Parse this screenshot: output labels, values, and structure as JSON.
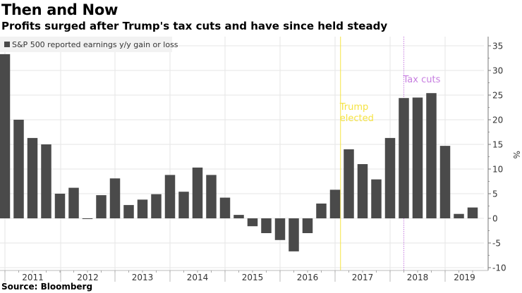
{
  "header": {
    "title": "Then and Now",
    "subtitle": "Profits surged after Trump's tax cuts and have since held steady"
  },
  "footer": {
    "source": "Source: Bloomberg"
  },
  "chart_data": {
    "type": "bar",
    "title": "Then and Now",
    "subtitle": "Profits surged after Trump's tax cuts and have since held steady",
    "xlabel": "",
    "ylabel": "%",
    "ylim": [
      -11,
      37
    ],
    "yticks": [
      -10,
      -5,
      0,
      5,
      10,
      15,
      20,
      25,
      30,
      35
    ],
    "y_axis_side": "right",
    "grid": true,
    "legend": {
      "placement": "top-left",
      "entries": [
        "S&P 500 reported earnings y/y gain or loss"
      ]
    },
    "year_labels": [
      "2011",
      "2012",
      "2013",
      "2014",
      "2015",
      "2016",
      "2017",
      "2018",
      "2019"
    ],
    "categories": [
      "4Q2010",
      "1Q2011",
      "2Q2011",
      "3Q2011",
      "4Q2011",
      "1Q2012",
      "2Q2012",
      "3Q2012",
      "4Q2012",
      "1Q2013",
      "2Q2013",
      "3Q2013",
      "4Q2013",
      "1Q2014",
      "2Q2014",
      "3Q2014",
      "4Q2014",
      "1Q2015",
      "2Q2015",
      "3Q2015",
      "4Q2015",
      "1Q2016",
      "2Q2016",
      "3Q2016",
      "4Q2016",
      "1Q2017",
      "2Q2017",
      "3Q2017",
      "4Q2017",
      "1Q2018",
      "2Q2018",
      "3Q2018",
      "4Q2018",
      "1Q2019",
      "2Q2019"
    ],
    "series": [
      {
        "name": "S&P 500 reported earnings y/y gain or loss",
        "color": "#4a4a4a",
        "values": [
          33.3,
          20.0,
          16.3,
          15.0,
          5.0,
          6.2,
          -0.1,
          4.7,
          8.1,
          2.7,
          3.8,
          4.9,
          8.8,
          5.4,
          10.3,
          8.8,
          4.2,
          0.7,
          -1.6,
          -3.0,
          -4.4,
          -6.7,
          -3.0,
          3.0,
          5.8,
          14.0,
          11.0,
          7.9,
          16.3,
          24.4,
          24.5,
          25.4,
          14.7,
          0.9,
          2.2
        ]
      }
    ],
    "annotations": [
      {
        "label": "Trump elected",
        "lines": [
          "Trump",
          "elected"
        ],
        "at_category": "4Q2016",
        "color": "#f5e342",
        "style": "solid"
      },
      {
        "label": "Tax cuts",
        "lines": [
          "Tax cuts"
        ],
        "at_category": "1Q2018",
        "color": "#c77ee0",
        "style": "dotted"
      }
    ]
  }
}
